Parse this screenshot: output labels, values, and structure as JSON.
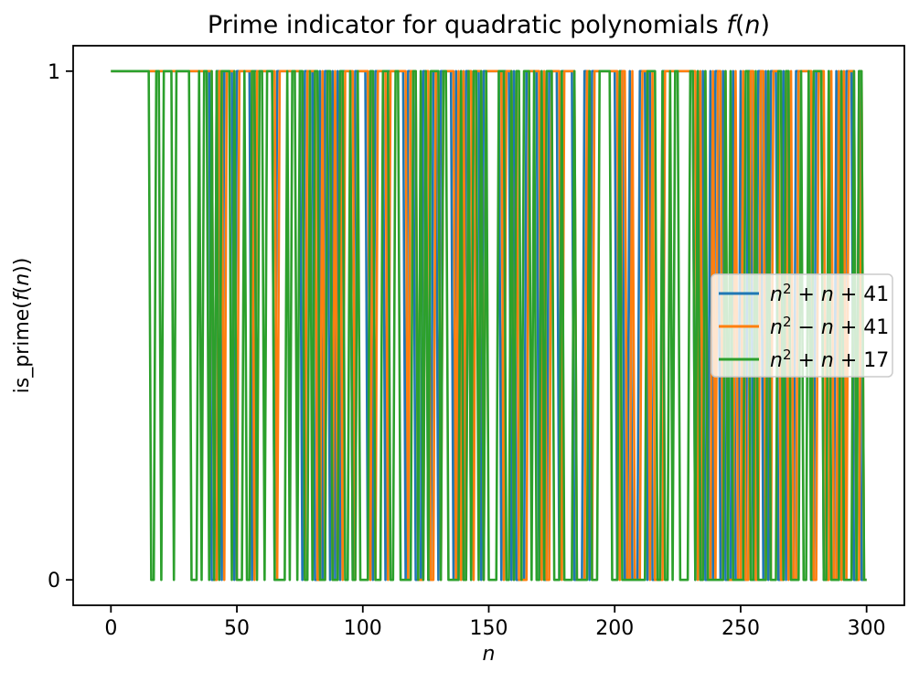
{
  "chart_data": {
    "type": "line",
    "title": "Prime indicator for quadratic polynomials f(n)",
    "xlabel": "n",
    "ylabel": "is_prime(f(n))",
    "x": {
      "start": 0,
      "end": 300,
      "step": 1
    },
    "xlim": [
      -15,
      315
    ],
    "ylim": [
      -0.05,
      1.05
    ],
    "xticks": [
      0,
      50,
      100,
      150,
      200,
      250,
      300
    ],
    "yticks": [
      0,
      1
    ],
    "grid": false,
    "y_encoding": "y(n) = 1 if f(n) is prime, else 0 (binary indicator line)",
    "series": [
      {
        "name": "n^2 + n + 41",
        "formula": "f(n) = n^2 + n + 41",
        "coeffs": {
          "a": 1,
          "b": 1,
          "c": 41
        },
        "color": "#1f77b4",
        "first_zero_n": 40,
        "label_tokens": [
          {
            "t": "n",
            "i": true
          },
          {
            "t": "2",
            "sup": true
          },
          {
            "t": " + "
          },
          {
            "t": "n",
            "i": true
          },
          {
            "t": " + 41"
          }
        ]
      },
      {
        "name": "n^2 - n + 41",
        "formula": "f(n) = n^2 - n + 41",
        "coeffs": {
          "a": 1,
          "b": -1,
          "c": 41
        },
        "color": "#ff7f0e",
        "first_zero_n": 41,
        "label_tokens": [
          {
            "t": "n",
            "i": true
          },
          {
            "t": "2",
            "sup": true
          },
          {
            "t": " − "
          },
          {
            "t": "n",
            "i": true
          },
          {
            "t": " + 41"
          }
        ]
      },
      {
        "name": "n^2 + n + 17",
        "formula": "f(n) = n^2 + n + 17",
        "coeffs": {
          "a": 1,
          "b": 1,
          "c": 17
        },
        "color": "#2ca02c",
        "first_zero_n": 16,
        "label_tokens": [
          {
            "t": "n",
            "i": true
          },
          {
            "t": "2",
            "sup": true
          },
          {
            "t": " + "
          },
          {
            "t": "n",
            "i": true
          },
          {
            "t": " + 17"
          }
        ]
      }
    ],
    "legend": {
      "location": "center right",
      "fill": "#ffffff",
      "fill_opacity": 0.8,
      "border_color": "#cccccc"
    }
  },
  "text": {
    "title_tokens": [
      {
        "t": "Prime indicator for quadratic polynomials "
      },
      {
        "t": "f",
        "i": true
      },
      {
        "t": "("
      },
      {
        "t": "n",
        "i": true
      },
      {
        "t": ")"
      }
    ],
    "xlabel_tokens": [
      {
        "t": "n",
        "i": true
      }
    ],
    "ylabel_tokens": [
      {
        "t": "is_prime("
      },
      {
        "t": "f",
        "i": true
      },
      {
        "t": "("
      },
      {
        "t": "n",
        "i": true
      },
      {
        "t": "))"
      }
    ]
  },
  "colors": {
    "spine": "#000000",
    "tick": "#000000",
    "text": "#000000",
    "background": "#ffffff"
  }
}
